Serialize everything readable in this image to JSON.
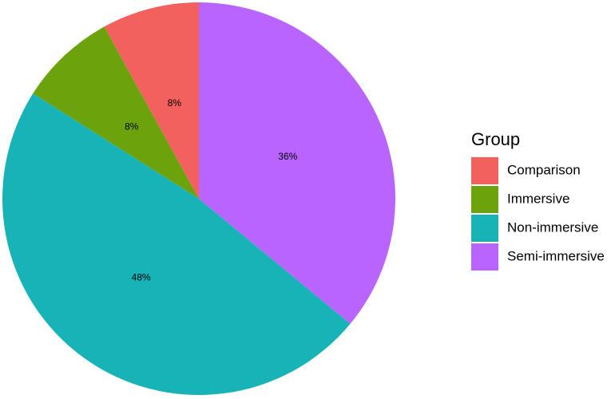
{
  "chart_data": {
    "type": "pie",
    "legend_title": "Group",
    "categories": [
      "Comparison",
      "Immersive",
      "Non-immersive",
      "Semi-immersive"
    ],
    "values": [
      8,
      8,
      48,
      36
    ],
    "value_labels": [
      "8%",
      "8%",
      "48%",
      "36%"
    ],
    "colors": [
      "#F3615F",
      "#6CA20C",
      "#18B3B6",
      "#B964FF"
    ],
    "legend_position": "right"
  }
}
